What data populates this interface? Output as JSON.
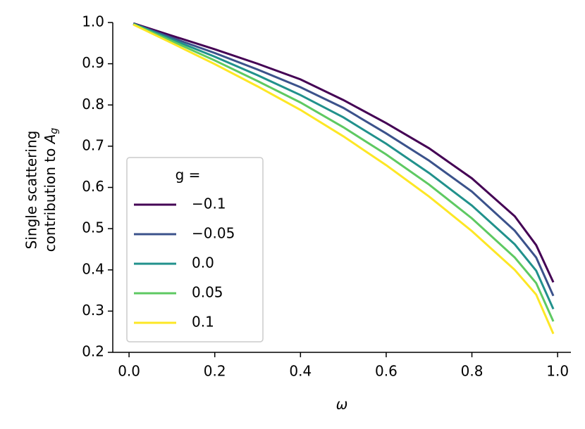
{
  "chart_data": {
    "type": "line",
    "x_label": "ω",
    "y_label": {
      "line1": "Single scattering",
      "line2": "contribution to",
      "symbol": "A",
      "subscript": "g"
    },
    "x": [
      0.01,
      0.1,
      0.2,
      0.3,
      0.4,
      0.5,
      0.6,
      0.7,
      0.8,
      0.9,
      0.95,
      0.99
    ],
    "series": [
      {
        "name": "−0.1",
        "color": "#440154",
        "values": [
          0.998,
          0.968,
          0.935,
          0.9,
          0.862,
          0.812,
          0.756,
          0.695,
          0.622,
          0.53,
          0.46,
          0.37
        ]
      },
      {
        "name": "−0.05",
        "color": "#3b528b",
        "values": [
          0.997,
          0.963,
          0.926,
          0.886,
          0.843,
          0.793,
          0.731,
          0.665,
          0.59,
          0.495,
          0.43,
          0.337
        ]
      },
      {
        "name": "0.0",
        "color": "#21918c",
        "values": [
          0.997,
          0.959,
          0.917,
          0.872,
          0.824,
          0.77,
          0.706,
          0.635,
          0.556,
          0.462,
          0.398,
          0.305
        ]
      },
      {
        "name": "0.05",
        "color": "#5ec962",
        "values": [
          0.996,
          0.955,
          0.908,
          0.858,
          0.806,
          0.746,
          0.68,
          0.607,
          0.525,
          0.43,
          0.368,
          0.275
        ]
      },
      {
        "name": "0.1",
        "color": "#fde725",
        "values": [
          0.995,
          0.95,
          0.899,
          0.845,
          0.788,
          0.724,
          0.654,
          0.578,
          0.494,
          0.4,
          0.34,
          0.245
        ]
      }
    ],
    "legend_title": "g =",
    "legend": "lower left",
    "xlim": [
      -0.038,
      1.031
    ],
    "ylim": [
      0.2,
      1.0
    ],
    "xticks": [
      {
        "value": 0,
        "label": "0.0"
      },
      0.2,
      0.4,
      0.6,
      0.8,
      {
        "value": 1,
        "label": "1.0"
      }
    ],
    "yticks": [
      0.2,
      0.3,
      0.4,
      0.5,
      0.6,
      0.7,
      0.8,
      0.9,
      {
        "value": 1,
        "label": "1.0"
      }
    ]
  }
}
